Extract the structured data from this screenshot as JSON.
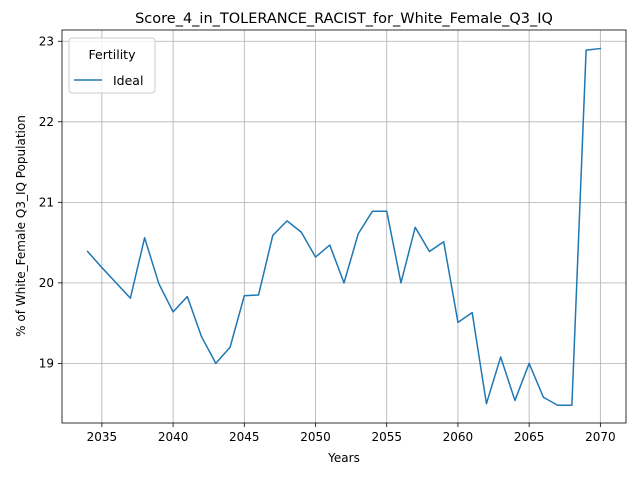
{
  "chart_data": {
    "type": "line",
    "title": "Score_4_in_TOLERANCE_RACIST_for_White_Female_Q3_IQ",
    "xlabel": "Years",
    "ylabel": "% of White_Female Q3_IQ Population",
    "xlim": [
      2032.2,
      2071.8
    ],
    "ylim": [
      18.26,
      23.14
    ],
    "x_ticks": [
      2035,
      2040,
      2045,
      2050,
      2055,
      2060,
      2065,
      2070
    ],
    "x_tick_labels": [
      "2035",
      "2040",
      "2045",
      "2050",
      "2055",
      "2060",
      "2065",
      "2070"
    ],
    "y_ticks": [
      19,
      20,
      21,
      22,
      23
    ],
    "y_tick_labels": [
      "19",
      "20",
      "21",
      "22",
      "23"
    ],
    "grid": true,
    "legend": {
      "title": "Fertility",
      "placement": "upper-left"
    },
    "series": [
      {
        "name": "Ideal",
        "color": "#1f77b4",
        "x": [
          2034,
          2035,
          2036,
          2037,
          2038,
          2039,
          2040,
          2041,
          2042,
          2043,
          2044,
          2045,
          2046,
          2047,
          2048,
          2049,
          2050,
          2051,
          2052,
          2053,
          2054,
          2055,
          2056,
          2057,
          2058,
          2059,
          2060,
          2061,
          2062,
          2063,
          2064,
          2065,
          2066,
          2067,
          2068,
          2069,
          2070
        ],
        "values": [
          20.39,
          20.19,
          20.0,
          19.81,
          20.56,
          19.99,
          19.64,
          19.83,
          19.33,
          19.0,
          19.2,
          19.84,
          19.85,
          20.59,
          20.77,
          20.63,
          20.32,
          20.47,
          20.0,
          20.61,
          20.89,
          20.89,
          20.0,
          20.69,
          20.39,
          20.51,
          19.51,
          19.63,
          18.5,
          19.08,
          18.54,
          19.0,
          18.58,
          18.48,
          18.48,
          22.89,
          22.91
        ]
      }
    ]
  }
}
